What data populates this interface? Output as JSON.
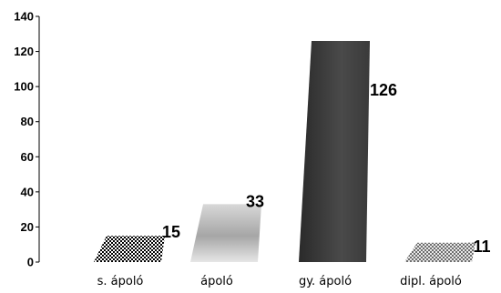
{
  "chart_data": {
    "type": "bar",
    "categories": [
      "s. ápoló",
      "ápoló",
      "gy. ápoló",
      "dipl. ápoló"
    ],
    "values": [
      15,
      33,
      126,
      11
    ],
    "data_labels": [
      "15",
      "33",
      "126",
      "11"
    ],
    "title": "",
    "xlabel": "",
    "ylabel": "",
    "ylim": [
      0,
      140
    ],
    "yticks": [
      0,
      20,
      40,
      60,
      80,
      100,
      120,
      140
    ],
    "ytick_labels": [
      "0",
      "20",
      "40",
      "60",
      "80",
      "100",
      "120",
      "140"
    ],
    "grid": false,
    "legend": "none",
    "style": "3D slanted bars with pattern/gradient fills",
    "bar_fills": [
      "checkered-black",
      "light-gray-gradient",
      "dark-gray-gradient",
      "checkered-gray"
    ],
    "colors": {
      "axis": "#000000",
      "bar_dark": "#3c3c3c",
      "bar_light": "#c0c0c0"
    }
  }
}
